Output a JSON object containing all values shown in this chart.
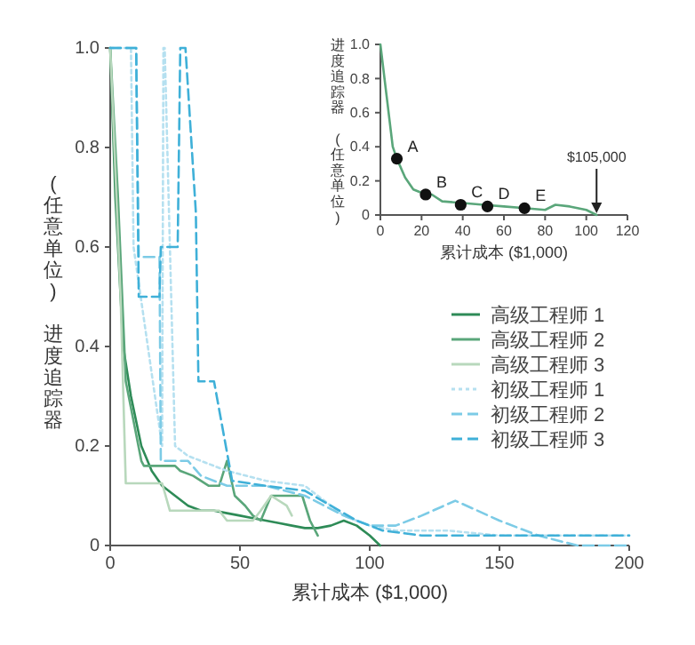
{
  "chart_data": [
    {
      "type": "line",
      "xlabel": "累计成本 ($1,000)",
      "ylabel": "(任意单位) 进度追踪器",
      "xlim": [
        0,
        200
      ],
      "ylim": [
        0,
        1
      ],
      "xticks": [
        0,
        50,
        100,
        150,
        200
      ],
      "yticks": [
        0,
        0.2,
        0.4,
        0.6,
        0.8,
        {
          "value": 1,
          "label": "1.0"
        }
      ],
      "legend": "right",
      "grid": false,
      "series": [
        {
          "name": "高级工程师 1",
          "color": "#2e8b57",
          "line_style": "solid",
          "x": [
            0,
            2,
            5,
            8,
            12,
            16,
            20,
            25,
            30,
            35,
            40,
            45,
            50,
            55,
            60,
            65,
            70,
            75,
            80,
            85,
            90,
            95,
            100,
            104
          ],
          "values": [
            1,
            0.7,
            0.4,
            0.3,
            0.2,
            0.15,
            0.12,
            0.1,
            0.08,
            0.07,
            0.07,
            0.065,
            0.06,
            0.055,
            0.05,
            0.045,
            0.04,
            0.035,
            0.035,
            0.04,
            0.05,
            0.04,
            0.02,
            0
          ]
        },
        {
          "name": "高级工程师 2",
          "color": "#5aa67a",
          "line_style": "solid",
          "x": [
            0,
            3,
            6,
            9,
            12,
            13,
            20,
            25,
            27,
            32,
            38,
            42,
            45,
            48,
            52,
            55,
            58,
            62,
            65,
            72,
            74,
            77,
            80
          ],
          "values": [
            1,
            0.7,
            0.33,
            0.25,
            0.17,
            0.16,
            0.16,
            0.16,
            0.15,
            0.14,
            0.12,
            0.12,
            0.17,
            0.1,
            0.08,
            0.06,
            0.05,
            0.1,
            0.1,
            0.1,
            0.1,
            0.05,
            0.02
          ]
        },
        {
          "name": "高级工程师 3",
          "color": "#b8d8bc",
          "line_style": "solid",
          "x": [
            0,
            4,
            6,
            20,
            23,
            30,
            42,
            45,
            55,
            58,
            62,
            68,
            70
          ],
          "values": [
            1,
            0.5,
            0.125,
            0.125,
            0.07,
            0.07,
            0.07,
            0.05,
            0.05,
            0.07,
            0.1,
            0.08,
            0.06
          ]
        },
        {
          "name": "初级工程师 1",
          "color": "#b5e0f0",
          "line_style": "dotted",
          "x": [
            0,
            8,
            9,
            20,
            20.5,
            21,
            25,
            30,
            45,
            60,
            75,
            90,
            100,
            110,
            130,
            150,
            175,
            200
          ],
          "values": [
            1,
            1,
            0.6,
            0.2,
            1,
            1,
            0.2,
            0.18,
            0.15,
            0.13,
            0.12,
            0.06,
            0.04,
            0.03,
            0.03,
            0.02,
            0.02,
            0.02
          ]
        },
        {
          "name": "初级工程师 2",
          "color": "#7ccbe6",
          "line_style": "dashed",
          "x": [
            0,
            10,
            11,
            19,
            19.5,
            30,
            35,
            45,
            60,
            75,
            90,
            100,
            110,
            120,
            133,
            150,
            165,
            180,
            200
          ],
          "values": [
            1,
            1,
            0.58,
            0.58,
            0.17,
            0.17,
            0.14,
            0.12,
            0.12,
            0.1,
            0.06,
            0.04,
            0.04,
            0.06,
            0.09,
            0.05,
            0.02,
            0,
            0
          ]
        },
        {
          "name": "初级工程师 3",
          "color": "#3fb0d8",
          "line_style": "dashed",
          "x": [
            0,
            10,
            11,
            19,
            19.5,
            26,
            27,
            29,
            33,
            34,
            40,
            47,
            60,
            75,
            85,
            95,
            105,
            120,
            150,
            200
          ],
          "values": [
            1,
            1,
            0.5,
            0.5,
            0.6,
            0.6,
            1,
            1,
            0.67,
            0.33,
            0.33,
            0.13,
            0.12,
            0.11,
            0.08,
            0.05,
            0.03,
            0.02,
            0.02,
            0.02
          ]
        }
      ]
    },
    {
      "type": "line",
      "xlabel": "累计成本 ($1,000)",
      "ylabel": "进度追踪器 (任意单位)",
      "xlim": [
        0,
        120
      ],
      "ylim": [
        0,
        1
      ],
      "xticks": [
        0,
        20,
        40,
        60,
        80,
        100,
        120
      ],
      "yticks": [
        0,
        0.2,
        0.4,
        0.6,
        0.8,
        {
          "value": 1,
          "label": "1.0"
        }
      ],
      "grid": false,
      "annotations": [
        {
          "text": "$105,000",
          "x": 105,
          "y": 0
        }
      ],
      "series": [
        {
          "color": "#5aa67a",
          "line_style": "solid",
          "x": [
            0,
            3,
            6,
            8,
            12,
            16,
            20,
            25,
            30,
            40,
            50,
            60,
            70,
            80,
            85,
            92,
            100,
            105
          ],
          "values": [
            1,
            0.7,
            0.4,
            0.33,
            0.22,
            0.15,
            0.13,
            0.12,
            0.08,
            0.07,
            0.06,
            0.05,
            0.04,
            0.03,
            0.06,
            0.05,
            0.03,
            0
          ]
        },
        {
          "type": "scatter",
          "color": "#111111",
          "marker": "circle",
          "x": [
            8,
            22,
            39,
            52,
            70
          ],
          "values": [
            0.33,
            0.12,
            0.06,
            0.05,
            0.04
          ],
          "value_labels": [
            "A",
            "B",
            "C",
            "D",
            "E"
          ]
        }
      ]
    }
  ]
}
